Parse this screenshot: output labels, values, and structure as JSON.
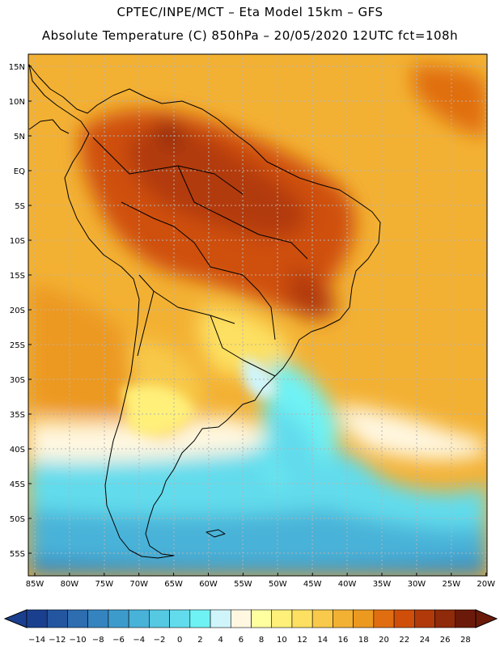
{
  "header": {
    "line1": "CPTEC/INPE/MCT –  Eta Model 15km – GFS",
    "line2": "Absolute Temperature (C) 850hPa – 20/05/2020 12UTC fct=108h"
  },
  "map": {
    "lat_labels": [
      "15N",
      "10N",
      "5N",
      "EQ",
      "5S",
      "10S",
      "15S",
      "20S",
      "25S",
      "30S",
      "35S",
      "40S",
      "45S",
      "50S",
      "55S"
    ],
    "lon_labels": [
      "85W",
      "80W",
      "75W",
      "70W",
      "65W",
      "60W",
      "55W",
      "50W",
      "45W",
      "40W",
      "35W",
      "30W",
      "25W",
      "20W"
    ],
    "lon_range": [
      -85,
      -20
    ],
    "lat_range": [
      -58,
      17
    ]
  },
  "colorbar": {
    "labels": [
      "−14",
      "−12",
      "−10",
      "−8",
      "−6",
      "−4",
      "−2",
      "0",
      "2",
      "4",
      "6",
      "8",
      "10",
      "12",
      "14",
      "16",
      "18",
      "20",
      "22",
      "24",
      "26",
      "28"
    ],
    "colors": [
      "#1b3f8f",
      "#2456a0",
      "#2d6db0",
      "#3584bf",
      "#3d9bcc",
      "#48b2d8",
      "#55c8e2",
      "#62dcec",
      "#6ff2f4",
      "#cff5fb",
      "#fff7e0",
      "#ffffa0",
      "#fff07a",
      "#fde062",
      "#f8c94a",
      "#f3b133",
      "#ec9920",
      "#e06e10",
      "#cf4f0a",
      "#b23a0a",
      "#8f2a0a",
      "#6b1a0a"
    ]
  }
}
